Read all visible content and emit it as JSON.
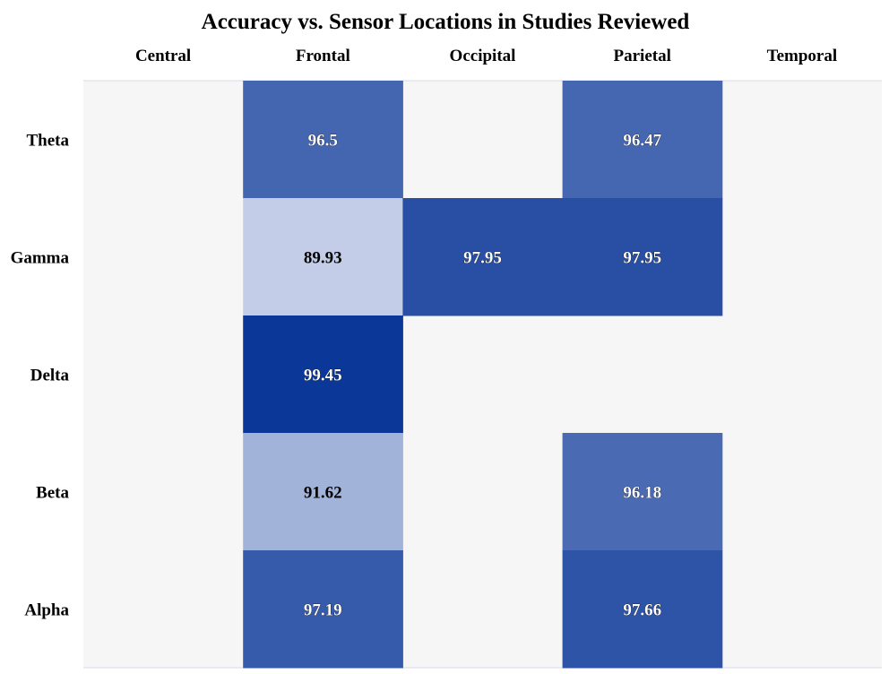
{
  "chart_data": {
    "type": "heatmap",
    "title": "Accuracy vs. Sensor Locations in Studies Reviewed",
    "columns": [
      "Central",
      "Frontal",
      "Occipital",
      "Parietal",
      "Temporal"
    ],
    "rows": [
      "Theta",
      "Gamma",
      "Delta",
      "Beta",
      "Alpha"
    ],
    "values": [
      [
        null,
        96.5,
        null,
        96.47,
        null
      ],
      [
        null,
        89.93,
        97.95,
        97.95,
        null
      ],
      [
        null,
        99.45,
        null,
        null,
        null
      ],
      [
        null,
        91.62,
        null,
        96.18,
        null
      ],
      [
        null,
        97.19,
        null,
        97.66,
        null
      ]
    ],
    "value_labels": [
      [
        null,
        "96.5",
        null,
        "96.47",
        null
      ],
      [
        null,
        "89.93",
        "97.95",
        "97.95",
        null
      ],
      [
        null,
        "99.45",
        null,
        null,
        null
      ],
      [
        null,
        "91.62",
        null,
        "96.18",
        null
      ],
      [
        null,
        "97.19",
        null,
        "97.66",
        null
      ]
    ],
    "color_range": [
      89.93,
      99.45
    ],
    "colors": {
      "low": "#c3cde7",
      "high": "#0b3898",
      "empty": "#f6f6f6",
      "grid_line": "#d8d8e6"
    },
    "legend": "none",
    "column_labels_position": "top"
  }
}
